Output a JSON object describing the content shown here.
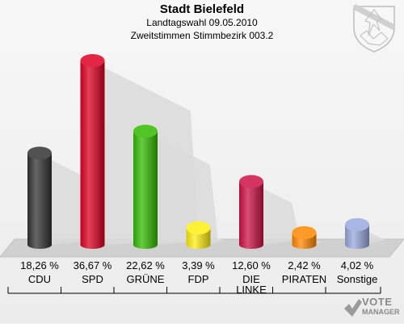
{
  "header": {
    "title": "Stadt Bielefeld",
    "subtitle": "Landtagswahl 09.05.2010",
    "subtitle2": "Zweitstimmen Stimmbezirk 003.2"
  },
  "watermark": {
    "line1": "VOTE",
    "line2": "MANAGER"
  },
  "chart_data": {
    "type": "bar",
    "title": "Stadt Bielefeld",
    "categories": [
      "CDU",
      "SPD",
      "GRÜNE",
      "FDP",
      "DIE LINKE",
      "PIRATEN",
      "Sonstige"
    ],
    "category_lines": [
      [
        "CDU"
      ],
      [
        "SPD"
      ],
      [
        "GRÜNE"
      ],
      [
        "FDP"
      ],
      [
        "DIE",
        "LINKE"
      ],
      [
        "PIRATEN"
      ],
      [
        "Sonstige"
      ]
    ],
    "values": [
      18.26,
      36.67,
      22.62,
      3.39,
      12.6,
      2.42,
      4.02
    ],
    "value_labels": [
      "18,26 %",
      "36,67 %",
      "22,62 %",
      "3,39 %",
      "12,60 %",
      "2,42 %",
      "4,02 %"
    ],
    "colors": [
      "#333333",
      "#dd0022",
      "#33bb00",
      "#ffee11",
      "#cc1144",
      "#ff8800",
      "#9aa8dd"
    ],
    "ylim": [
      0,
      36.67
    ],
    "grid": false
  }
}
